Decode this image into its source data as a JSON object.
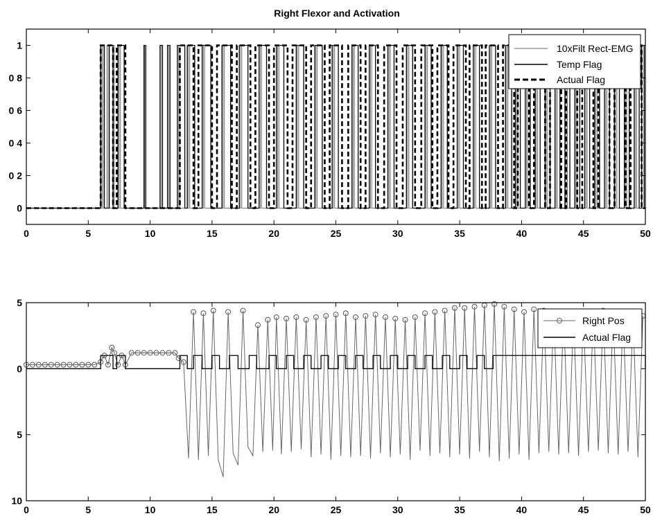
{
  "chart_data": [
    {
      "type": "line",
      "title": "Right Flexor and Activation",
      "xlabel": "",
      "ylabel": "",
      "xlim": [
        0,
        50
      ],
      "ylim": [
        -0.1,
        1.1
      ],
      "x_ticks": [
        "0",
        "5",
        "10",
        "15",
        "20",
        "25",
        "30",
        "35",
        "40",
        "45",
        "50"
      ],
      "y_ticks": [
        {
          "value": 0,
          "label": "0"
        },
        {
          "value": 0.2,
          "label": "0 2"
        },
        {
          "value": 0.4,
          "label": "0 4"
        },
        {
          "value": 0.6,
          "label": "0 6"
        },
        {
          "value": 0.8,
          "label": "0 8"
        },
        {
          "value": 1,
          "label": "1"
        }
      ],
      "grid": false,
      "legend": "top-right",
      "series": [
        {
          "name": "10xFilt Rect-EMG",
          "style": "solid-thin",
          "pulses": [
            [
              6.1,
              6.2
            ],
            [
              6.5,
              6.6
            ],
            [
              7.0,
              7.1
            ],
            [
              7.5,
              7.6
            ],
            [
              9.6,
              9.7
            ],
            [
              10.9,
              11.0
            ],
            [
              11.5,
              11.6
            ],
            [
              12.3,
              12.4
            ],
            [
              13.1,
              13.2
            ],
            [
              14.3,
              14.4
            ],
            [
              15.9,
              16.0
            ],
            [
              17.3,
              17.4
            ],
            [
              18.9,
              19.0
            ],
            [
              20.3,
              20.4
            ],
            [
              21.9,
              22.0
            ],
            [
              23.4,
              23.5
            ],
            [
              24.8,
              24.9
            ],
            [
              26.4,
              26.5
            ],
            [
              27.8,
              27.9
            ],
            [
              29.3,
              29.4
            ],
            [
              30.8,
              30.9
            ],
            [
              32.3,
              32.4
            ],
            [
              33.6,
              33.7
            ],
            [
              34.9,
              35.0
            ],
            [
              36.2,
              36.3
            ],
            [
              37.5,
              37.6
            ],
            [
              38.8,
              38.9
            ],
            [
              39.6,
              39.7
            ],
            [
              40.4,
              40.5
            ],
            [
              41.2,
              41.3
            ],
            [
              42.0,
              42.1
            ],
            [
              42.8,
              42.9
            ],
            [
              43.6,
              43.7
            ],
            [
              44.4,
              44.5
            ],
            [
              45.2,
              45.3
            ],
            [
              46.0,
              46.1
            ],
            [
              46.8,
              46.9
            ],
            [
              47.6,
              47.7
            ],
            [
              48.4,
              48.5
            ],
            [
              49.2,
              49.3
            ]
          ]
        },
        {
          "name": "Temp Flag",
          "style": "solid",
          "pulses": [
            [
              6.0,
              6.3
            ],
            [
              6.7,
              7.0
            ],
            [
              7.4,
              7.9
            ],
            [
              9.5,
              9.6
            ],
            [
              10.8,
              11.0
            ],
            [
              11.4,
              11.6
            ],
            [
              12.2,
              12.8
            ],
            [
              13.0,
              13.6
            ],
            [
              14.2,
              14.9
            ],
            [
              15.8,
              16.5
            ],
            [
              17.2,
              17.9
            ],
            [
              18.8,
              19.4
            ],
            [
              20.2,
              20.8
            ],
            [
              21.8,
              22.4
            ],
            [
              23.3,
              23.9
            ],
            [
              24.7,
              25.2
            ],
            [
              26.3,
              26.8
            ],
            [
              27.7,
              28.2
            ],
            [
              29.2,
              29.7
            ],
            [
              30.7,
              31.2
            ],
            [
              32.2,
              32.7
            ],
            [
              33.5,
              34.0
            ],
            [
              34.8,
              35.3
            ],
            [
              36.1,
              36.6
            ],
            [
              37.4,
              37.9
            ],
            [
              38.7,
              39.2
            ],
            [
              39.5,
              39.9
            ],
            [
              40.3,
              40.7
            ],
            [
              41.1,
              41.5
            ],
            [
              41.9,
              42.3
            ],
            [
              42.7,
              43.1
            ],
            [
              43.5,
              43.9
            ],
            [
              44.3,
              44.7
            ],
            [
              45.1,
              45.5
            ],
            [
              45.9,
              46.3
            ],
            [
              46.7,
              47.1
            ],
            [
              47.5,
              47.9
            ],
            [
              48.3,
              48.7
            ],
            [
              49.1,
              49.5
            ],
            [
              49.7,
              49.9
            ]
          ]
        },
        {
          "name": "Actual Flag",
          "style": "dashed",
          "pulses": [
            [
              6.0,
              7.0
            ],
            [
              7.3,
              8.0
            ],
            [
              12.4,
              13.5
            ],
            [
              13.9,
              15.0
            ],
            [
              15.4,
              16.6
            ],
            [
              17.0,
              18.1
            ],
            [
              18.5,
              19.6
            ],
            [
              20.0,
              21.1
            ],
            [
              21.5,
              22.6
            ],
            [
              23.0,
              24.1
            ],
            [
              24.5,
              25.5
            ],
            [
              26.0,
              27.0
            ],
            [
              27.4,
              28.4
            ],
            [
              28.9,
              29.9
            ],
            [
              30.4,
              31.4
            ],
            [
              31.9,
              32.8
            ],
            [
              33.2,
              34.1
            ],
            [
              34.5,
              35.5
            ],
            [
              35.8,
              36.8
            ],
            [
              37.1,
              38.1
            ],
            [
              38.5,
              39.4
            ],
            [
              39.7,
              40.6
            ],
            [
              41.0,
              41.9
            ],
            [
              42.3,
              43.2
            ],
            [
              43.6,
              44.5
            ],
            [
              44.9,
              45.8
            ],
            [
              46.2,
              47.1
            ],
            [
              47.5,
              48.4
            ],
            [
              48.8,
              49.7
            ]
          ]
        }
      ]
    },
    {
      "type": "line",
      "title": "",
      "xlabel": "",
      "ylabel": "",
      "xlim": [
        0,
        50
      ],
      "ylim": [
        -10,
        5
      ],
      "x_ticks": [
        "0",
        "5",
        "10",
        "15",
        "20",
        "25",
        "30",
        "35",
        "40",
        "45",
        "50"
      ],
      "y_ticks": [
        {
          "value": 5,
          "label": "5"
        },
        {
          "value": 0,
          "label": "0"
        },
        {
          "value": -5,
          "label": "5"
        },
        {
          "value": -10,
          "label": "10"
        }
      ],
      "grid": false,
      "legend": "top-right",
      "series": [
        {
          "name": "Right Pos",
          "style": "solid-markers",
          "x": [
            0,
            0.5,
            1,
            1.5,
            2,
            2.5,
            3,
            3.5,
            4,
            4.5,
            5,
            5.5,
            6,
            6.3,
            6.6,
            6.9,
            7.1,
            7.4,
            7.7,
            8,
            8.5,
            9,
            9.5,
            10,
            10.5,
            11,
            11.5,
            12,
            12.3,
            12.7,
            13.1,
            13.5,
            13.9,
            14.3,
            14.7,
            15.1,
            15.5,
            15.9,
            16.3,
            16.7,
            17.1,
            17.5,
            17.9,
            18.3,
            18.7,
            19.1,
            19.5,
            19.9,
            20.2,
            20.6,
            21.0,
            21.4,
            21.8,
            22.2,
            22.6,
            23.0,
            23.4,
            23.8,
            24.2,
            24.6,
            25.0,
            25.4,
            25.8,
            26.2,
            26.6,
            27.0,
            27.4,
            27.8,
            28.2,
            28.6,
            29.0,
            29.4,
            29.8,
            30.2,
            30.6,
            31.0,
            31.4,
            31.8,
            32.2,
            32.6,
            33.0,
            33.4,
            33.8,
            34.2,
            34.6,
            35.0,
            35.4,
            35.8,
            36.2,
            36.6,
            37.0,
            37.4,
            37.8,
            38.2,
            38.6,
            39.0,
            39.4,
            39.8,
            40.2,
            40.6,
            41.0,
            41.4,
            41.8,
            42.2,
            42.6,
            43.0,
            43.4,
            43.8,
            44.2,
            44.6,
            45.0,
            45.4,
            45.8,
            46.2,
            46.6,
            47.0,
            47.4,
            47.8,
            48.2,
            48.6,
            49.0,
            49.4,
            49.8
          ],
          "y": [
            0.3,
            0.3,
            0.3,
            0.3,
            0.3,
            0.3,
            0.3,
            0.3,
            0.3,
            0.3,
            0.3,
            0.3,
            0.5,
            1.0,
            0.3,
            1.6,
            1.2,
            0.3,
            1.0,
            0.3,
            1.2,
            1.2,
            1.2,
            1.2,
            1.2,
            1.2,
            1.2,
            1.2,
            0.8,
            0.5,
            -6.8,
            4.3,
            -6.9,
            4.2,
            -6.6,
            4.4,
            -6.9,
            -8.2,
            4.3,
            -6.4,
            -7.3,
            4.4,
            -5.9,
            -6.6,
            3.3,
            -6.3,
            3.7,
            -6.2,
            3.9,
            -6.5,
            3.8,
            -6.3,
            3.9,
            -6.1,
            3.7,
            -6.7,
            3.9,
            -6.5,
            4.0,
            -6.9,
            4.1,
            -6.6,
            4.2,
            -6.7,
            3.9,
            -6.6,
            4.0,
            -6.8,
            4.1,
            -6.4,
            3.9,
            -6.7,
            3.8,
            -6.5,
            3.7,
            -6.9,
            3.9,
            -6.2,
            4.2,
            -6.6,
            4.3,
            -6.4,
            4.4,
            -6.7,
            4.6,
            -6.5,
            4.6,
            -6.8,
            4.7,
            -6.3,
            4.8,
            -6.7,
            4.9,
            -7.0,
            4.7,
            -6.8,
            4.5,
            -6.5,
            4.3,
            -6.9,
            4.5,
            -6.4,
            4.4,
            -6.3,
            4.3,
            -6.5,
            4.2,
            -6.4,
            4.1,
            -6.6,
            4.0,
            -6.3,
            4.2,
            -6.2,
            4.4,
            -6.4,
            4.3,
            -6.5,
            4.1,
            -6.3,
            3.9,
            -6.7,
            4.0
          ]
        },
        {
          "name": "Actual Flag",
          "style": "solid",
          "pulses": [
            [
              6.0,
              7.0
            ],
            [
              7.3,
              8.0
            ],
            [
              12.4,
              13.0
            ],
            [
              13.5,
              14.2
            ],
            [
              15.0,
              15.6
            ],
            [
              16.4,
              17.1
            ],
            [
              18.0,
              18.6
            ],
            [
              19.6,
              20.2
            ],
            [
              21.0,
              21.6
            ],
            [
              22.4,
              23.0
            ],
            [
              23.8,
              24.4
            ],
            [
              25.2,
              25.8
            ],
            [
              26.6,
              27.2
            ],
            [
              28.0,
              28.6
            ],
            [
              29.4,
              30.0
            ],
            [
              30.8,
              31.4
            ],
            [
              32.2,
              32.8
            ],
            [
              33.6,
              34.2
            ],
            [
              35.0,
              35.6
            ],
            [
              36.4,
              37.0
            ],
            [
              37.7,
              50.0
            ]
          ],
          "pulse_high": 1,
          "pulse_low": 0
        }
      ]
    }
  ]
}
